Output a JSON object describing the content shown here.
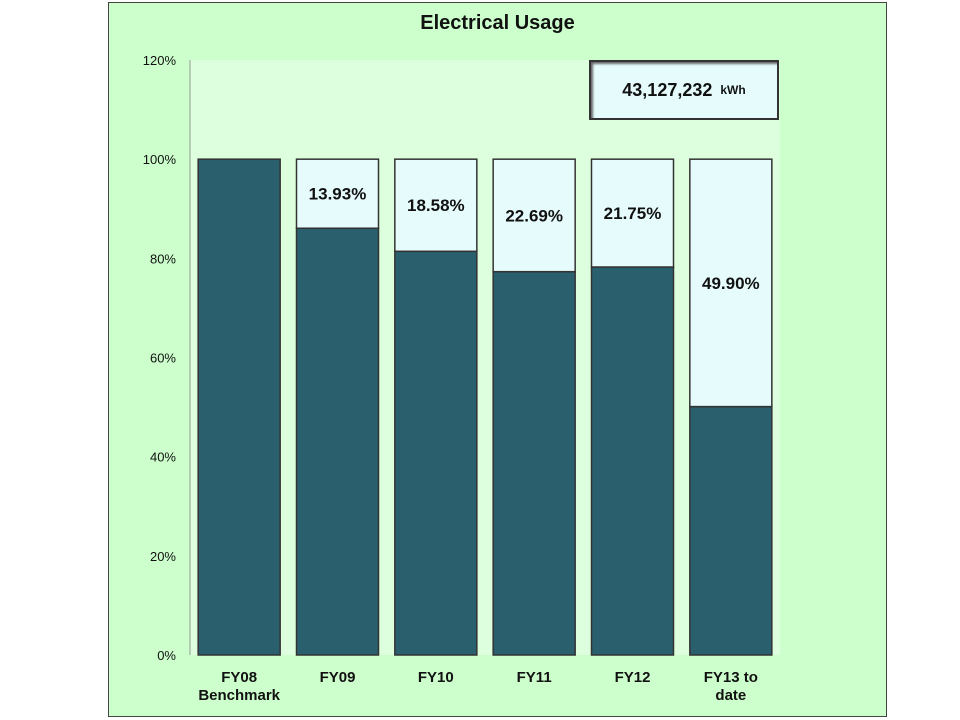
{
  "chart_data": {
    "type": "bar",
    "stacked": true,
    "title": "Electrical Usage",
    "categories": [
      "FY08|Benchmark",
      "FY09",
      "FY10",
      "FY11",
      "FY12",
      "FY13 to|date"
    ],
    "series": [
      {
        "values": [
          100,
          86.07,
          81.42,
          77.31,
          78.25,
          50.1
        ],
        "color": "#2a5f6e"
      },
      {
        "values": [
          0,
          13.93,
          18.58,
          22.69,
          21.75,
          49.9
        ],
        "color": "#e6fbfb"
      }
    ],
    "data_labels": [
      "",
      "13.93%",
      "18.58%",
      "22.69%",
      "21.75%",
      "49.90%"
    ],
    "ylim": [
      0,
      120
    ],
    "yticks": [
      "0%",
      "20%",
      "40%",
      "60%",
      "80%",
      "100%",
      "120%"
    ],
    "grid": false,
    "annotation": {
      "value": "43,127,232",
      "unit": "kWh"
    }
  },
  "colors": {
    "background": "#ccffcc",
    "plot_area": "#ddffdd"
  }
}
